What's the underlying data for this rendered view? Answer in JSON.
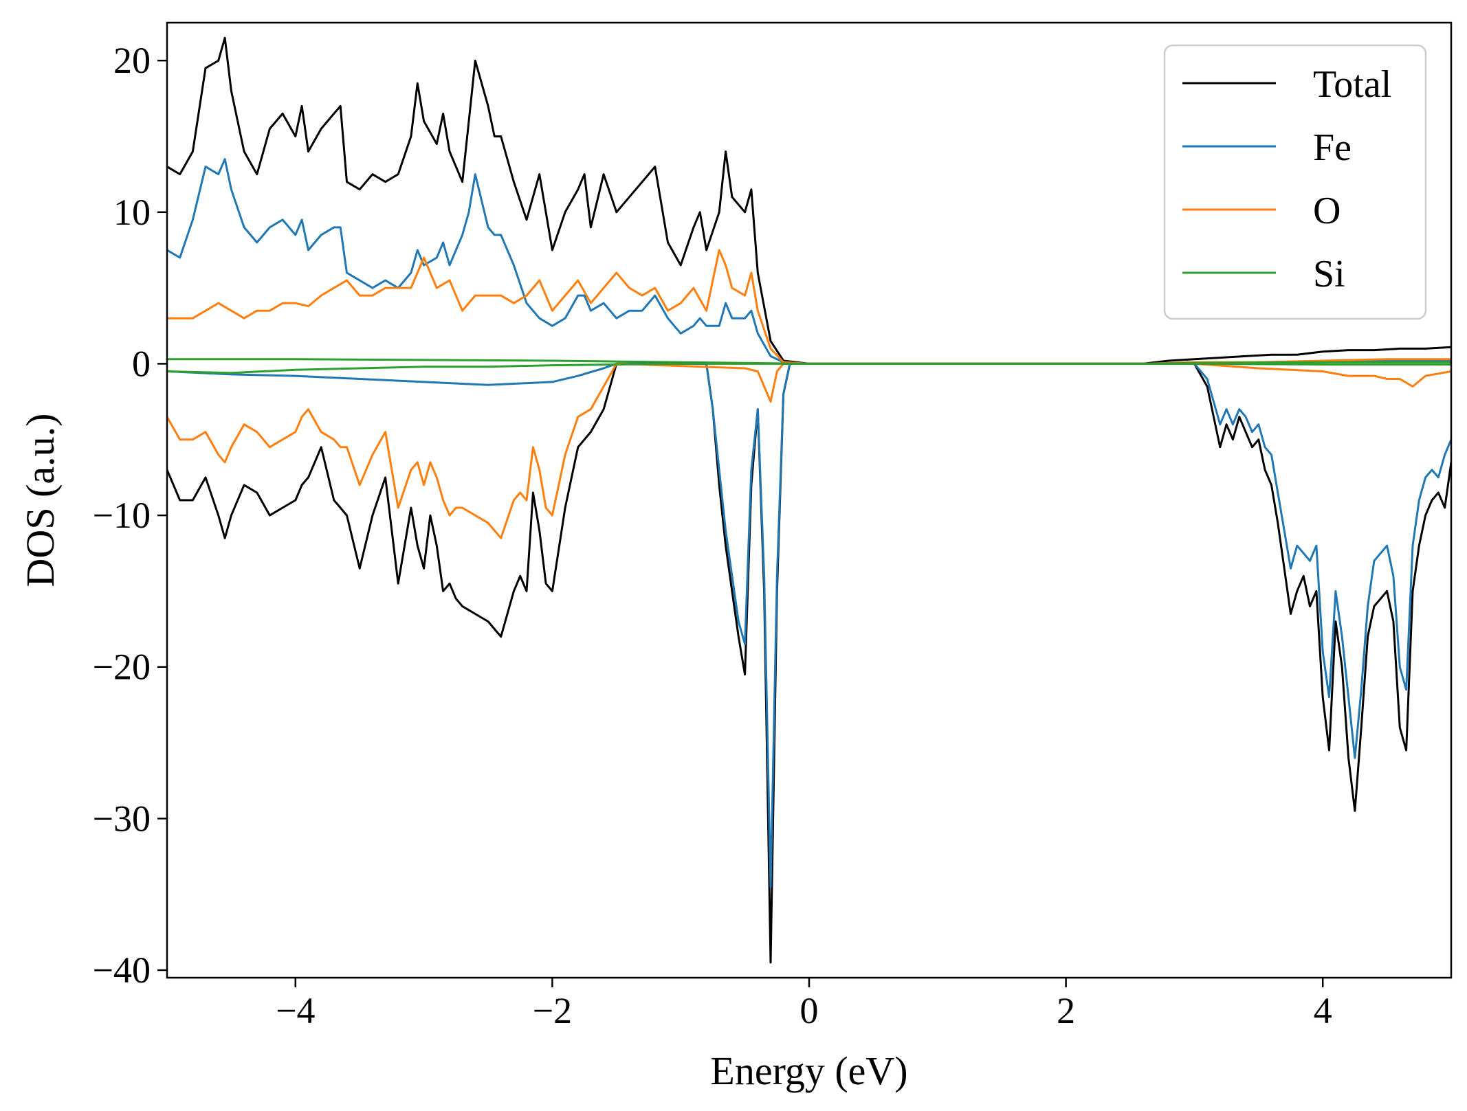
{
  "chart_data": {
    "type": "line",
    "title": "",
    "xlabel": "Energy (eV)",
    "ylabel": "DOS (a.u.)",
    "xlim": [
      -5,
      5
    ],
    "ylim": [
      -40.5,
      22.5
    ],
    "xticks": [
      -4,
      -2,
      0,
      2,
      4
    ],
    "xtick_labels": [
      "−4",
      "−2",
      "0",
      "2",
      "4"
    ],
    "yticks": [
      20,
      10,
      0,
      -10,
      -20,
      -30,
      -40
    ],
    "ytick_labels": [
      "20",
      "10",
      "0",
      "−10",
      "−20",
      "−30",
      "−40"
    ],
    "grid": false,
    "legend_position": "top-right",
    "series": [
      {
        "name": "Total",
        "color": "#000000",
        "x": [
          -5,
          -4.9,
          -4.8,
          -4.7,
          -4.6,
          -4.55,
          -4.5,
          -4.4,
          -4.3,
          -4.2,
          -4.1,
          -4.0,
          -3.95,
          -3.9,
          -3.8,
          -3.7,
          -3.65,
          -3.6,
          -3.5,
          -3.4,
          -3.3,
          -3.2,
          -3.1,
          -3.05,
          -3.0,
          -2.9,
          -2.85,
          -2.8,
          -2.7,
          -2.65,
          -2.6,
          -2.5,
          -2.45,
          -2.4,
          -2.3,
          -2.2,
          -2.1,
          -2.0,
          -1.9,
          -1.8,
          -1.75,
          -1.7,
          -1.6,
          -1.5,
          -1.4,
          -1.3,
          -1.2,
          -1.1,
          -1.0,
          -0.9,
          -0.85,
          -0.8,
          -0.7,
          -0.65,
          -0.6,
          -0.5,
          -0.45,
          -0.4,
          -0.3,
          -0.2,
          0,
          2.6,
          2.8,
          3.0,
          3.2,
          3.4,
          3.6,
          3.8,
          4.0,
          4.2,
          4.4,
          4.6,
          4.8,
          5.0
        ],
        "y": [
          13.0,
          12.5,
          14.0,
          19.5,
          20.0,
          21.5,
          18.0,
          14.0,
          12.5,
          15.5,
          16.5,
          15.0,
          17.0,
          14.0,
          15.5,
          16.5,
          17.0,
          12.0,
          11.5,
          12.5,
          12.0,
          12.5,
          15.0,
          18.5,
          16.0,
          14.5,
          16.5,
          14.0,
          12.0,
          16.0,
          20.0,
          17.0,
          15.0,
          15.0,
          12.0,
          9.5,
          12.5,
          7.5,
          10.0,
          11.5,
          12.5,
          9.0,
          12.5,
          10.0,
          11.0,
          12.0,
          13.0,
          8.0,
          6.5,
          9.0,
          10.0,
          7.5,
          10.0,
          14.0,
          11.0,
          10.0,
          11.5,
          6.0,
          1.5,
          0.2,
          0.0,
          0.0,
          0.2,
          0.3,
          0.4,
          0.5,
          0.6,
          0.6,
          0.8,
          0.9,
          0.9,
          1.0,
          1.0,
          1.1
        ]
      },
      {
        "name": "Fe",
        "color": "#1f77b4",
        "x": [
          -5,
          -4.9,
          -4.8,
          -4.7,
          -4.6,
          -4.55,
          -4.5,
          -4.4,
          -4.3,
          -4.2,
          -4.1,
          -4.0,
          -3.95,
          -3.9,
          -3.8,
          -3.7,
          -3.65,
          -3.6,
          -3.5,
          -3.4,
          -3.3,
          -3.2,
          -3.1,
          -3.05,
          -3.0,
          -2.9,
          -2.85,
          -2.8,
          -2.7,
          -2.65,
          -2.6,
          -2.5,
          -2.45,
          -2.4,
          -2.3,
          -2.2,
          -2.1,
          -2.0,
          -1.9,
          -1.8,
          -1.75,
          -1.7,
          -1.6,
          -1.5,
          -1.4,
          -1.3,
          -1.2,
          -1.1,
          -1.0,
          -0.9,
          -0.85,
          -0.8,
          -0.7,
          -0.65,
          -0.6,
          -0.5,
          -0.45,
          -0.4,
          -0.3,
          -0.2,
          0,
          2.6,
          3.0,
          3.5,
          4.0,
          4.5,
          5.0
        ],
        "y": [
          7.5,
          7.0,
          9.5,
          13.0,
          12.5,
          13.5,
          11.5,
          9.0,
          8.0,
          9.0,
          9.5,
          8.5,
          9.5,
          7.5,
          8.5,
          9.0,
          9.0,
          6.0,
          5.5,
          5.0,
          5.5,
          5.0,
          6.0,
          7.5,
          6.5,
          7.0,
          8.0,
          6.5,
          8.5,
          10.0,
          12.5,
          9.0,
          8.5,
          8.5,
          6.5,
          4.0,
          3.0,
          2.5,
          3.0,
          4.5,
          4.5,
          3.5,
          4.0,
          3.0,
          3.5,
          3.5,
          4.5,
          3.0,
          2.0,
          2.5,
          3.0,
          2.5,
          2.5,
          4.0,
          3.0,
          3.0,
          3.5,
          2.0,
          0.5,
          0.1,
          0.0,
          0.0,
          0.0,
          0.1,
          0.1,
          0.2,
          0.2
        ]
      },
      {
        "name": "O",
        "color": "#ff7f0e",
        "x": [
          -5,
          -4.8,
          -4.6,
          -4.5,
          -4.4,
          -4.3,
          -4.2,
          -4.1,
          -4.0,
          -3.9,
          -3.8,
          -3.7,
          -3.6,
          -3.5,
          -3.4,
          -3.3,
          -3.2,
          -3.1,
          -3.0,
          -2.9,
          -2.8,
          -2.7,
          -2.6,
          -2.5,
          -2.4,
          -2.3,
          -2.2,
          -2.1,
          -2.0,
          -1.9,
          -1.8,
          -1.7,
          -1.6,
          -1.5,
          -1.4,
          -1.3,
          -1.2,
          -1.1,
          -1.0,
          -0.9,
          -0.8,
          -0.7,
          -0.65,
          -0.6,
          -0.5,
          -0.45,
          -0.4,
          -0.3,
          -0.2,
          0,
          2.6,
          3.0,
          3.5,
          4.0,
          4.5,
          5.0
        ],
        "y": [
          3.0,
          3.0,
          4.0,
          3.5,
          3.0,
          3.5,
          3.5,
          4.0,
          4.0,
          3.8,
          4.5,
          5.0,
          5.5,
          4.5,
          4.5,
          5.0,
          5.0,
          5.0,
          7.0,
          5.0,
          5.5,
          3.5,
          4.5,
          4.5,
          4.5,
          4.0,
          4.5,
          5.5,
          3.5,
          4.5,
          5.5,
          4.0,
          5.0,
          6.0,
          5.0,
          4.5,
          5.0,
          3.5,
          4.0,
          5.0,
          3.5,
          7.5,
          6.5,
          5.0,
          4.5,
          6.0,
          3.5,
          1.0,
          0.1,
          0.0,
          0.0,
          0.1,
          0.1,
          0.2,
          0.3,
          0.3
        ]
      },
      {
        "name": "Si",
        "color": "#2ca02c",
        "x": [
          -5,
          -4.0,
          -3.0,
          -2.0,
          -1.5,
          -1.0,
          0,
          2.6,
          3.0,
          4.0,
          5.0
        ],
        "y": [
          0.3,
          0.3,
          0.25,
          0.2,
          0.15,
          0.1,
          0.0,
          0.0,
          0.05,
          0.1,
          0.1
        ]
      },
      {
        "name": "",
        "color": "#000000",
        "x": [
          -5,
          -4.9,
          -4.8,
          -4.7,
          -4.6,
          -4.55,
          -4.5,
          -4.4,
          -4.3,
          -4.2,
          -4.1,
          -4.0,
          -3.95,
          -3.9,
          -3.8,
          -3.7,
          -3.65,
          -3.6,
          -3.5,
          -3.4,
          -3.3,
          -3.2,
          -3.1,
          -3.05,
          -3.0,
          -2.95,
          -2.9,
          -2.85,
          -2.8,
          -2.75,
          -2.7,
          -2.6,
          -2.5,
          -2.45,
          -2.4,
          -2.3,
          -2.25,
          -2.2,
          -2.15,
          -2.1,
          -2.05,
          -2.0,
          -1.9,
          -1.8,
          -1.7,
          -1.6,
          -1.5,
          -0.8,
          -0.75,
          -0.7,
          -0.65,
          -0.6,
          -0.55,
          -0.5,
          -0.45,
          -0.4,
          -0.35,
          -0.3,
          -0.25,
          -0.2,
          -0.15,
          0,
          3.0,
          3.1,
          3.2,
          3.25,
          3.3,
          3.35,
          3.4,
          3.45,
          3.5,
          3.55,
          3.6,
          3.65,
          3.7,
          3.75,
          3.8,
          3.85,
          3.9,
          3.95,
          4.0,
          4.05,
          4.1,
          4.15,
          4.2,
          4.25,
          4.3,
          4.35,
          4.4,
          4.45,
          4.5,
          4.55,
          4.6,
          4.65,
          4.7,
          4.75,
          4.8,
          4.85,
          4.9,
          4.95,
          5.0
        ],
        "y": [
          -7.0,
          -9.0,
          -9.0,
          -7.5,
          -10.0,
          -11.5,
          -10.0,
          -8.0,
          -8.5,
          -10.0,
          -9.5,
          -9.0,
          -8.0,
          -7.5,
          -5.5,
          -9.0,
          -9.5,
          -10.0,
          -13.5,
          -10.0,
          -7.5,
          -14.5,
          -9.5,
          -12.0,
          -13.5,
          -10.0,
          -12.0,
          -15.0,
          -14.5,
          -15.5,
          -16.0,
          -16.5,
          -17.0,
          -17.5,
          -18.0,
          -15.0,
          -14.0,
          -15.0,
          -8.5,
          -11.0,
          -14.5,
          -15.0,
          -9.5,
          -5.5,
          -4.5,
          -3.0,
          0.0,
          0.0,
          -3.0,
          -8.0,
          -12.0,
          -15.0,
          -18.0,
          -20.5,
          -8.0,
          -3.0,
          -15.0,
          -39.5,
          -15.0,
          -2.0,
          0.0,
          0.0,
          0.0,
          -1.5,
          -5.5,
          -4.0,
          -5.0,
          -3.5,
          -4.5,
          -5.5,
          -5.0,
          -7.0,
          -8.0,
          -10.5,
          -13.5,
          -16.5,
          -15.0,
          -14.0,
          -16.0,
          -15.0,
          -22.0,
          -25.5,
          -17.0,
          -20.0,
          -26.0,
          -29.5,
          -24.0,
          -18.0,
          -16.0,
          -15.5,
          -15.0,
          -17.0,
          -24.0,
          -25.5,
          -15.0,
          -12.0,
          -10.0,
          -9.0,
          -8.5,
          -9.5,
          -6.5
        ]
      },
      {
        "name": "",
        "color": "#1f77b4",
        "x": [
          -5,
          -4.5,
          -4.0,
          -3.5,
          -3.0,
          -2.5,
          -2.0,
          -1.8,
          -1.6,
          -1.5,
          -0.8,
          -0.75,
          -0.7,
          -0.65,
          -0.6,
          -0.55,
          -0.5,
          -0.45,
          -0.4,
          -0.35,
          -0.3,
          -0.25,
          -0.2,
          -0.15,
          0,
          3.0,
          3.1,
          3.2,
          3.25,
          3.3,
          3.35,
          3.4,
          3.45,
          3.5,
          3.55,
          3.6,
          3.65,
          3.7,
          3.75,
          3.8,
          3.85,
          3.9,
          3.95,
          4.0,
          4.05,
          4.1,
          4.15,
          4.2,
          4.25,
          4.3,
          4.35,
          4.4,
          4.45,
          4.5,
          4.55,
          4.6,
          4.65,
          4.7,
          4.75,
          4.8,
          4.85,
          4.9,
          4.95,
          5.0
        ],
        "y": [
          -0.5,
          -0.7,
          -0.8,
          -1.0,
          -1.2,
          -1.4,
          -1.2,
          -0.8,
          -0.3,
          0.0,
          0.0,
          -3.0,
          -7.0,
          -11.0,
          -14.0,
          -17.0,
          -18.5,
          -7.0,
          -3.0,
          -14.0,
          -34.5,
          -14.0,
          -2.0,
          0.0,
          0.0,
          0.0,
          -1.0,
          -4.0,
          -3.0,
          -4.0,
          -3.0,
          -3.5,
          -4.5,
          -4.0,
          -5.5,
          -6.0,
          -8.5,
          -11.0,
          -13.5,
          -12.0,
          -12.5,
          -13.0,
          -12.0,
          -19.0,
          -22.0,
          -15.0,
          -18.0,
          -22.0,
          -26.0,
          -21.5,
          -16.0,
          -13.0,
          -12.5,
          -12.0,
          -14.0,
          -20.0,
          -21.5,
          -12.0,
          -9.0,
          -7.5,
          -7.0,
          -7.5,
          -6.0,
          -5.0
        ]
      },
      {
        "name": "",
        "color": "#ff7f0e",
        "x": [
          -5,
          -4.9,
          -4.8,
          -4.7,
          -4.6,
          -4.55,
          -4.5,
          -4.4,
          -4.3,
          -4.2,
          -4.1,
          -4.0,
          -3.95,
          -3.9,
          -3.8,
          -3.7,
          -3.65,
          -3.6,
          -3.5,
          -3.4,
          -3.3,
          -3.2,
          -3.1,
          -3.05,
          -3.0,
          -2.95,
          -2.9,
          -2.85,
          -2.8,
          -2.75,
          -2.7,
          -2.6,
          -2.5,
          -2.45,
          -2.4,
          -2.3,
          -2.25,
          -2.2,
          -2.15,
          -2.1,
          -2.05,
          -2.0,
          -1.9,
          -1.8,
          -1.7,
          -1.6,
          -1.5,
          -0.5,
          -0.4,
          -0.3,
          -0.25,
          -0.2,
          0,
          3.0,
          3.5,
          4.0,
          4.2,
          4.4,
          4.5,
          4.6,
          4.7,
          4.8,
          5.0
        ],
        "y": [
          -3.5,
          -5.0,
          -5.0,
          -4.5,
          -6.0,
          -6.5,
          -5.5,
          -4.0,
          -4.5,
          -5.5,
          -5.0,
          -4.5,
          -3.5,
          -3.0,
          -4.5,
          -5.0,
          -5.5,
          -5.5,
          -8.0,
          -6.0,
          -4.5,
          -9.5,
          -7.0,
          -6.5,
          -8.0,
          -6.5,
          -7.5,
          -9.0,
          -10.0,
          -9.5,
          -9.5,
          -10.0,
          -10.5,
          -11.0,
          -11.5,
          -9.0,
          -8.5,
          -9.0,
          -5.5,
          -7.0,
          -9.5,
          -10.0,
          -6.0,
          -3.5,
          -3.0,
          -1.5,
          0.0,
          -0.3,
          -0.5,
          -2.5,
          -0.5,
          0.0,
          0.0,
          0.0,
          -0.3,
          -0.5,
          -0.8,
          -0.8,
          -1.0,
          -1.0,
          -1.5,
          -0.8,
          -0.5
        ]
      },
      {
        "name": "",
        "color": "#2ca02c",
        "x": [
          -5,
          -4.5,
          -4.0,
          -3.5,
          -3.0,
          -2.5,
          -2.0,
          -1.5,
          -1.0,
          0,
          3.0,
          4.0,
          5.0
        ],
        "y": [
          -0.5,
          -0.6,
          -0.4,
          -0.3,
          -0.2,
          -0.2,
          -0.1,
          -0.05,
          0.0,
          0.0,
          0.0,
          -0.05,
          -0.05
        ]
      }
    ]
  }
}
